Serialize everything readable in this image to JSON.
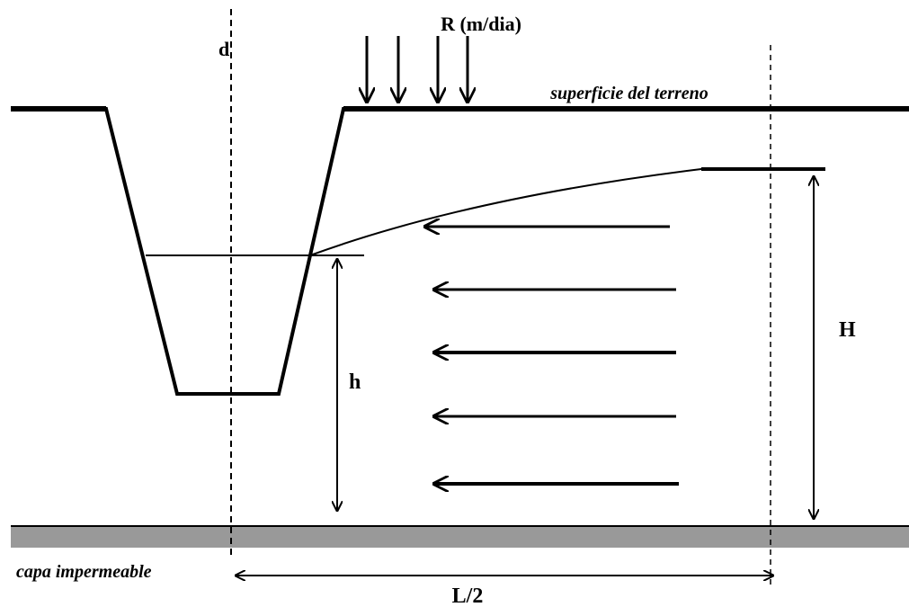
{
  "labels": {
    "recharge": "R (m/dia)",
    "drain": "d",
    "ground_surface": "superficie del terreno",
    "h": "h",
    "H": "H",
    "impermeable_layer": "capa impermeable",
    "half_spacing": "L/2"
  }
}
